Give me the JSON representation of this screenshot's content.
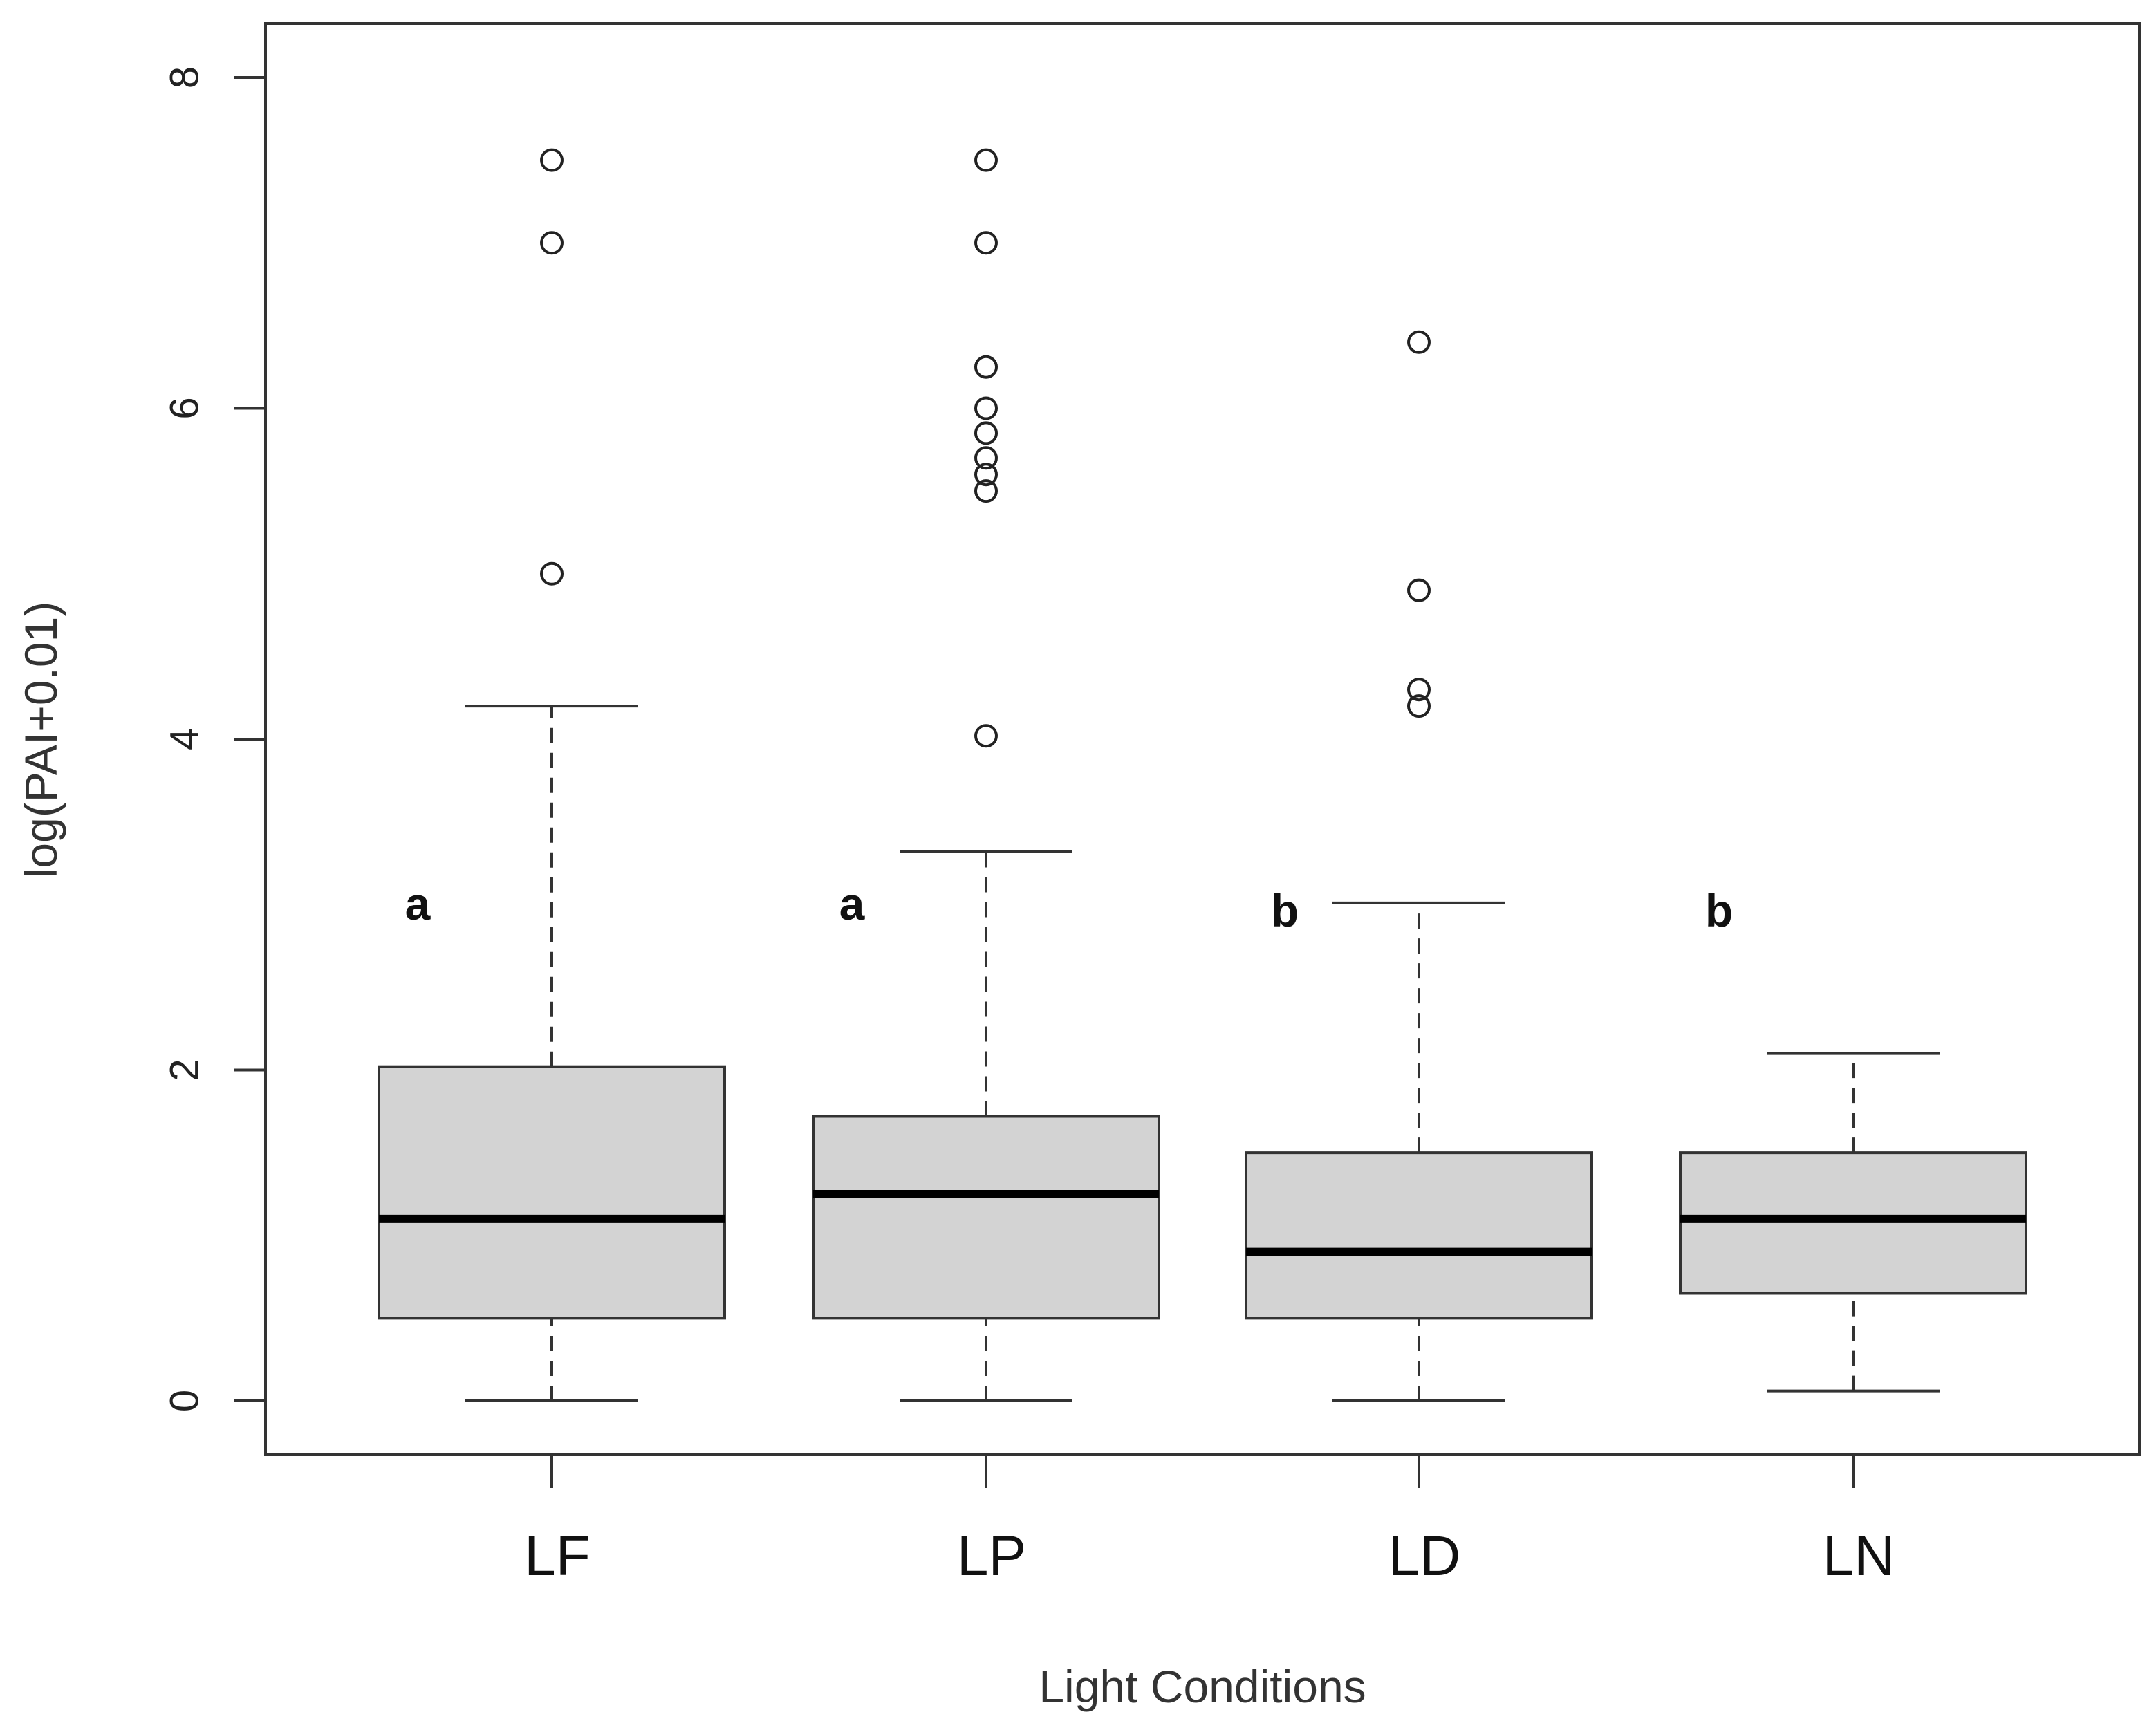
{
  "chart_data": {
    "type": "boxplot",
    "title": "",
    "xlabel": "Light Conditions",
    "ylabel": "log(PAI+0.01)",
    "ylim": [
      -0.65,
      8.3
    ],
    "yticks": [
      "0",
      "2",
      "4",
      "6",
      "8"
    ],
    "grid": false,
    "legend": "none",
    "box_color": "#d3d3d3",
    "categories": [
      "LF",
      "LP",
      "LD",
      "LN"
    ],
    "boxes": [
      {
        "category": "LF",
        "whisker_low": 0.0,
        "q1": 0.5,
        "median": 1.1,
        "q3": 2.02,
        "whisker_high": 4.2,
        "outliers": [
          5.0,
          7.0,
          7.5
        ],
        "group_letter": "a"
      },
      {
        "category": "LP",
        "whisker_low": 0.0,
        "q1": 0.5,
        "median": 1.25,
        "q3": 1.72,
        "whisker_high": 3.32,
        "outliers": [
          4.02,
          5.5,
          5.6,
          5.7,
          5.85,
          6.0,
          6.25,
          7.0,
          7.5
        ],
        "group_letter": "a"
      },
      {
        "category": "LD",
        "whisker_low": 0.0,
        "q1": 0.5,
        "median": 0.9,
        "q3": 1.5,
        "whisker_high": 3.01,
        "outliers": [
          4.2,
          4.3,
          4.9,
          6.4
        ],
        "group_letter": "b"
      },
      {
        "category": "LN",
        "whisker_low": 0.06,
        "q1": 0.65,
        "median": 1.1,
        "q3": 1.5,
        "whisker_high": 2.1,
        "outliers": [],
        "group_letter": "b"
      }
    ]
  }
}
